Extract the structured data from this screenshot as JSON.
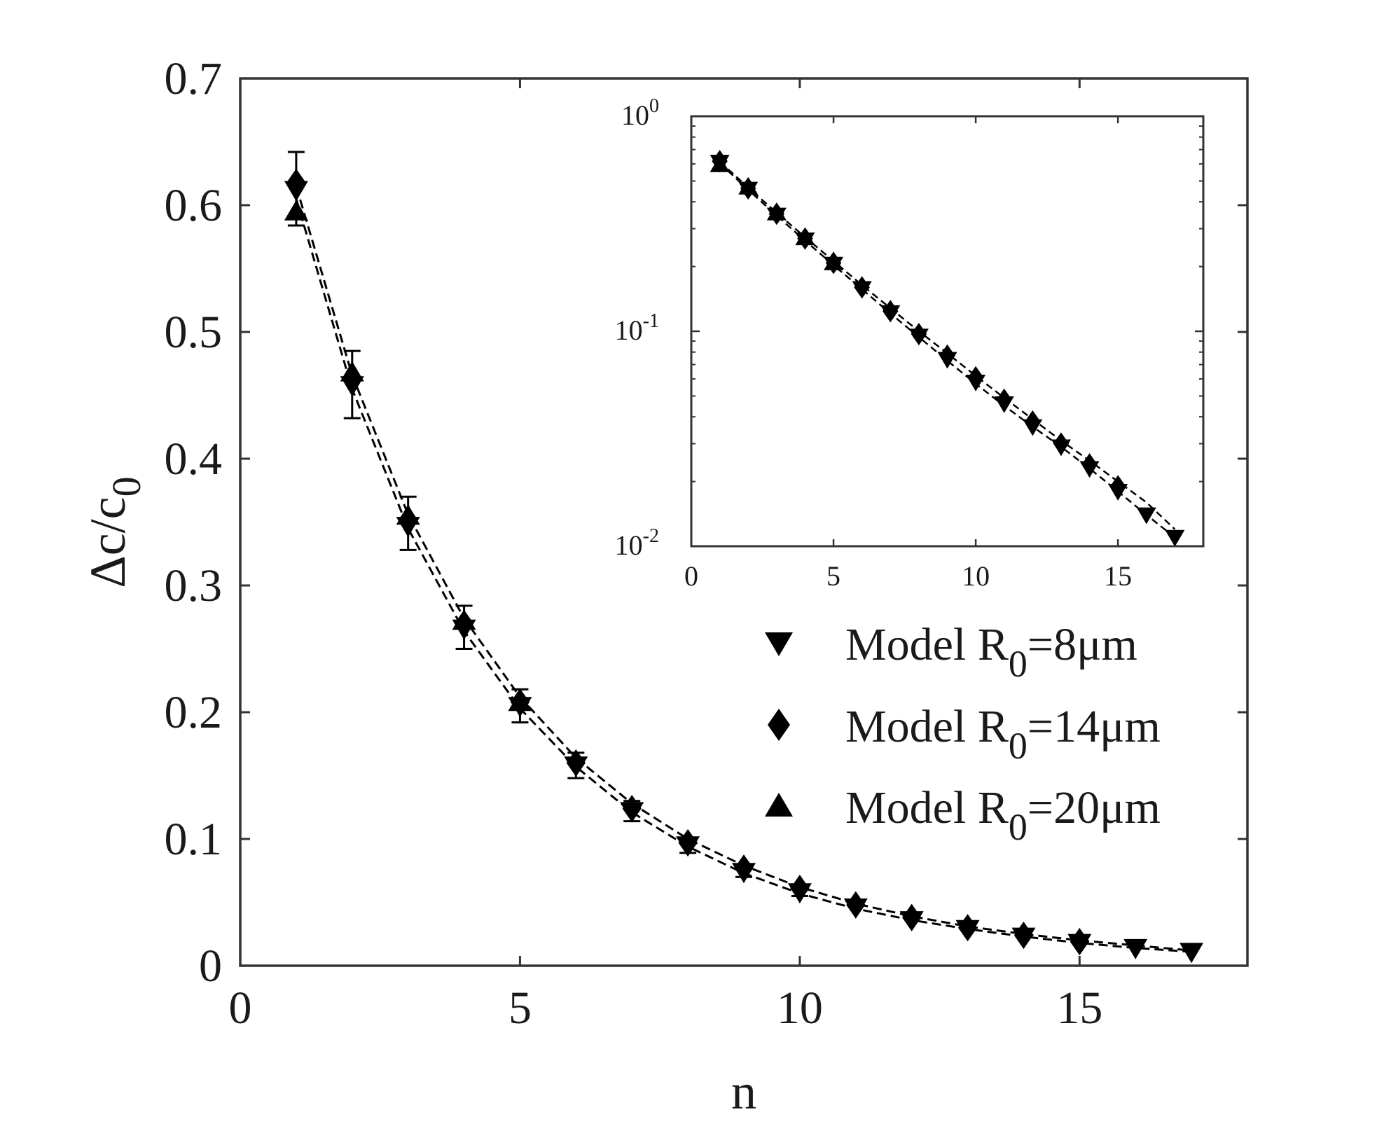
{
  "chart_data": {
    "type": "scatter",
    "main": {
      "xlabel": "n",
      "ylabel_main": "Δc/c",
      "ylabel_sub": "0",
      "xlim": [
        0,
        18
      ],
      "ylim": [
        0,
        0.7
      ],
      "x_ticks": [
        0,
        5,
        10,
        15
      ],
      "y_ticks": [
        0,
        0.1,
        0.2,
        0.3,
        0.4,
        0.5,
        0.6,
        0.7
      ],
      "x_tick_labels": [
        "0",
        "5",
        "10",
        "15"
      ],
      "y_tick_labels": [
        "0",
        "0.1",
        "0.2",
        "0.3",
        "0.4",
        "0.5",
        "0.6",
        "0.7"
      ],
      "legend_position": "lower-right",
      "series": [
        {
          "name": "Model R0=8μm",
          "legend_main": "Model R",
          "legend_sub": "0",
          "legend_tail": "=8μm",
          "marker": "triangle-down",
          "x": [
            1,
            2,
            3,
            4,
            5,
            6,
            7,
            8,
            9,
            10,
            11,
            12,
            13,
            14,
            15,
            16,
            17
          ],
          "y": [
            0.612,
            0.458,
            0.347,
            0.266,
            0.205,
            0.158,
            0.122,
            0.095,
            0.074,
            0.058,
            0.046,
            0.036,
            0.029,
            0.023,
            0.018,
            0.014,
            0.011
          ]
        },
        {
          "name": "Model R0=14μm",
          "legend_main": "Model R",
          "legend_sub": "0",
          "legend_tail": "=14μm",
          "marker": "diamond",
          "x": [
            1,
            2,
            3,
            4,
            5,
            6,
            7,
            8,
            9,
            10,
            11,
            12,
            13,
            14,
            15
          ],
          "y": [
            0.618,
            0.462,
            0.352,
            0.27,
            0.208,
            0.16,
            0.124,
            0.097,
            0.077,
            0.061,
            0.048,
            0.038,
            0.03,
            0.024,
            0.019
          ]
        },
        {
          "name": "Model R0=20μm",
          "legend_main": "Model R",
          "legend_sub": "0",
          "legend_tail": "=20μm",
          "marker": "triangle-up",
          "x": [
            1,
            2,
            3,
            4,
            5
          ],
          "y": [
            0.595,
            0.468,
            0.355,
            0.272,
            0.208
          ]
        }
      ],
      "error_bars": {
        "x": [
          1,
          2,
          3,
          4,
          5,
          6,
          7,
          8,
          9,
          10
        ],
        "low": [
          0.584,
          0.432,
          0.328,
          0.25,
          0.192,
          0.148,
          0.114,
          0.089,
          0.07,
          0.055
        ],
        "high": [
          0.642,
          0.485,
          0.37,
          0.284,
          0.218,
          0.168,
          0.13,
          0.101,
          0.08,
          0.063
        ]
      },
      "fit_lines": [
        {
          "x": [
            1,
            2,
            3,
            4,
            5,
            6,
            7,
            8,
            9,
            10,
            11,
            12,
            13,
            14,
            15,
            16,
            17
          ],
          "y": [
            0.605,
            0.455,
            0.345,
            0.264,
            0.203,
            0.157,
            0.121,
            0.094,
            0.073,
            0.057,
            0.045,
            0.036,
            0.029,
            0.023,
            0.018,
            0.014,
            0.011
          ]
        },
        {
          "x": [
            1,
            2,
            3,
            4,
            5,
            6,
            7,
            8,
            9,
            10,
            11,
            12,
            13,
            14,
            15,
            16,
            17
          ],
          "y": [
            0.615,
            0.466,
            0.356,
            0.274,
            0.212,
            0.164,
            0.128,
            0.1,
            0.079,
            0.062,
            0.049,
            0.039,
            0.031,
            0.025,
            0.02,
            0.016,
            0.012
          ]
        }
      ]
    },
    "inset": {
      "xscale": "linear",
      "yscale": "log",
      "xlim": [
        0,
        18
      ],
      "ylim": [
        0.01,
        1
      ],
      "x_ticks": [
        0,
        5,
        10,
        15
      ],
      "x_tick_labels": [
        "0",
        "5",
        "10",
        "15"
      ],
      "y_ticks": [
        1,
        0.1,
        0.01
      ],
      "y_tick_base": "10",
      "y_tick_exponents": [
        "0",
        "-1",
        "-2"
      ]
    }
  }
}
